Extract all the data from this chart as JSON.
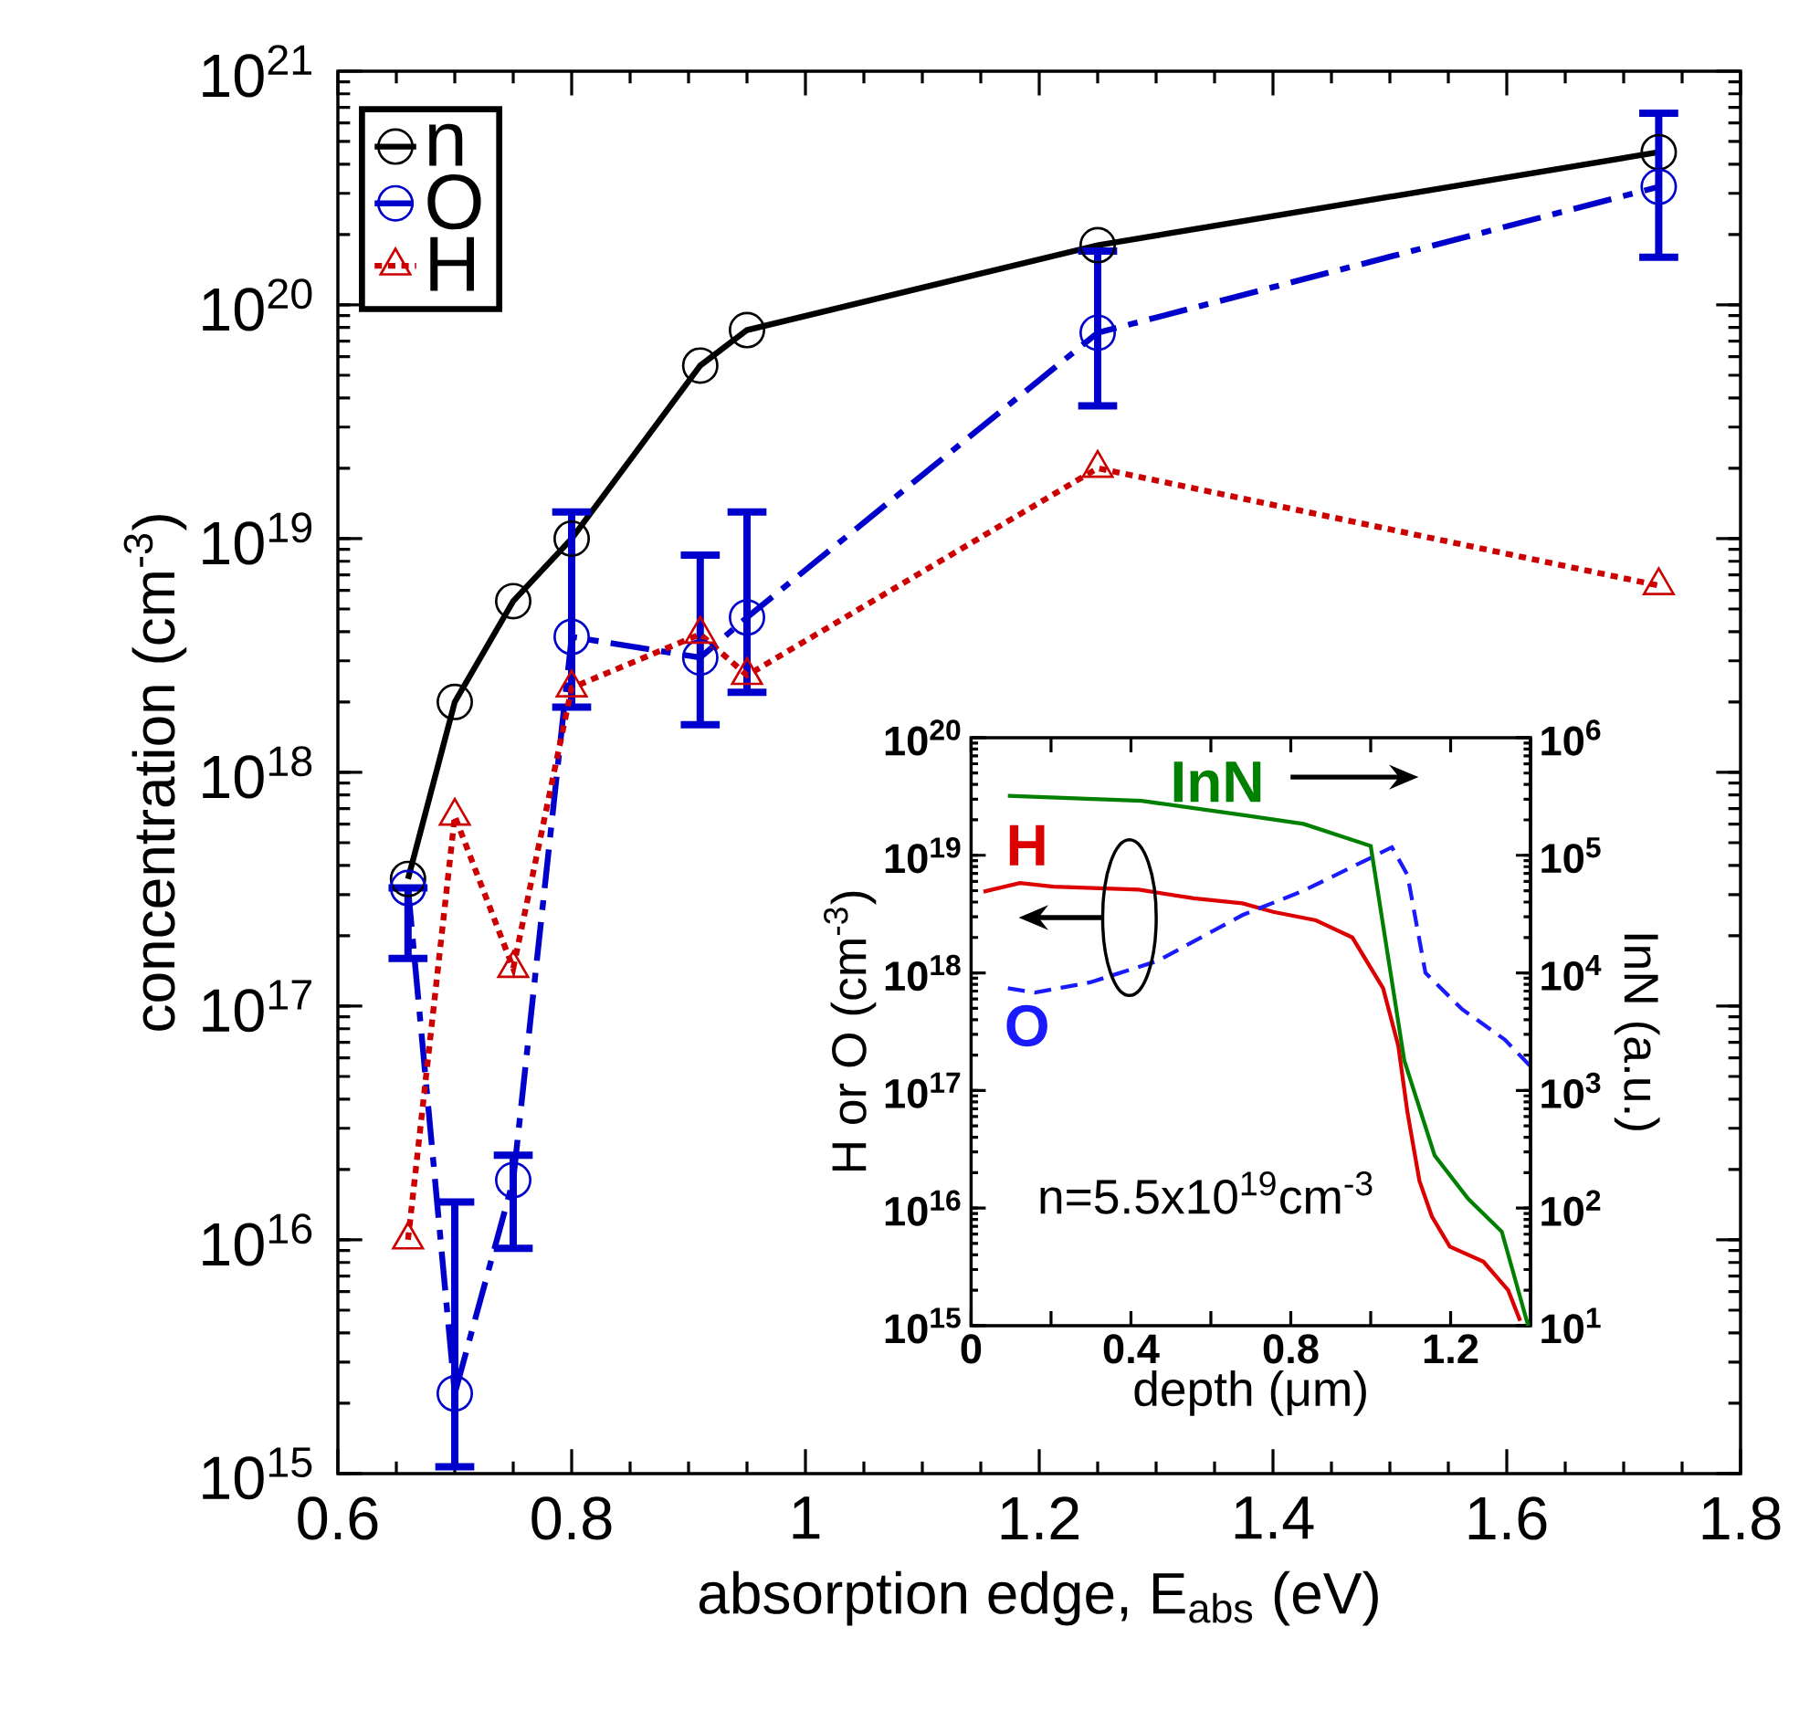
{
  "chart_data": [
    {
      "type": "line",
      "xlabel": "absorption edge, E$_{abs}$ (eV)",
      "ylabel": "concentration (cm$^{-3}$)",
      "log": "y",
      "legend": "top left",
      "xlim": [
        0.6,
        1.8
      ],
      "xticks": [
        0.6,
        0.8,
        1,
        1.2,
        1.4,
        1.6,
        1.8
      ],
      "ylim": [
        1000000000000000.0,
        1e+21
      ],
      "yticks": [
        {
          "value": 1000000000000000.0,
          "label": "10$^{15}$"
        },
        {
          "value": 1e+16,
          "label": "10$^{16}$"
        },
        {
          "value": 1e+17,
          "label": "10$^{17}$"
        },
        {
          "value": 1e+18,
          "label": "10$^{18}$"
        },
        {
          "value": 1e+19,
          "label": "10$^{19}$"
        },
        {
          "value": 1e+20,
          "label": "10$^{20}$"
        },
        {
          "value": 1e+21,
          "label": "10$^{21}$"
        }
      ],
      "series": [
        {
          "name": "n",
          "color": "#000000",
          "marker": "circle",
          "line_style": "solid",
          "x": [
            0.66,
            0.7,
            0.75,
            0.8,
            0.91,
            0.95,
            1.25,
            1.73
          ],
          "values": [
            3.5e+17,
            2e+18,
            5.4e+18,
            1e+19,
            5.5e+19,
            7.8e+19,
            1.8e+20,
            4.5e+20
          ]
        },
        {
          "name": "O",
          "color": "#0000cc",
          "marker": "circle",
          "line_style": "dashed",
          "x": [
            0.66,
            0.7,
            0.75,
            0.8,
            0.91,
            0.95,
            1.25,
            1.73
          ],
          "values": [
            3.2e+17,
            2200000000000000.0,
            1.8e+16,
            3.8e+18,
            3.1e+18,
            4.6e+18,
            7.6e+19,
            3.2e+20
          ],
          "errors": [
            [
              1.6e+17,
              3.2e+17
            ],
            [
              1070000000000000.0,
              1.45e+16
            ],
            [
              9200000000000000.0,
              2.3e+16
            ],
            [
              1.9e+18,
              1.3e+19
            ],
            [
              1.6e+18,
              8.5e+18
            ],
            [
              2.2e+18,
              1.3e+19
            ],
            [
              3.7e+19,
              1.7e+20
            ],
            [
              1.6e+20,
              6.6e+20
            ]
          ]
        },
        {
          "name": "H",
          "color": "#cc0000",
          "marker": "triangle",
          "line_style": "dotted",
          "x": [
            0.66,
            0.7,
            0.75,
            0.8,
            0.91,
            0.95,
            1.25,
            1.73
          ],
          "values": [
            1e+16,
            6.5e+17,
            1.45e+17,
            2.3e+18,
            3.9e+18,
            2.6e+18,
            2e+19,
            6.3e+18
          ]
        }
      ]
    },
    {
      "type": "line",
      "xlabel": "depth (μm)",
      "ylabel": "H or O (cm$^{-3}$)",
      "log": "y",
      "legend": false,
      "xlim": [
        0,
        1.4
      ],
      "xticks": [
        0,
        {
          "value": 0.2,
          "label": null
        },
        0.4,
        {
          "value": 0.6,
          "label": null
        },
        0.8,
        {
          "value": 1.0,
          "label": null
        },
        1.2
      ],
      "ylim": [
        1000000000000000.0,
        1e+20
      ],
      "yticks": [
        {
          "value": 1000000000000000.0,
          "label": "10$^{15}$"
        },
        {
          "value": 1e+16,
          "label": "10$^{16}$"
        },
        {
          "value": 1e+17,
          "label": "10$^{17}$"
        },
        {
          "value": 1e+18,
          "label": "10$^{18}$"
        },
        {
          "value": 1e+19,
          "label": "10$^{19}$"
        },
        {
          "value": 1e+20,
          "label": "10$^{20}$"
        }
      ],
      "annotations": [
        "n=5.5x10$^{19}$cm$^{-3}$"
      ],
      "series": [
        {
          "name": "H",
          "color": "#dd0000",
          "line_style": "solid",
          "x": [
            0.031,
            0.122,
            0.206,
            0.42,
            0.557,
            0.679,
            0.756,
            0.863,
            0.954,
            1.031,
            1.069,
            1.092,
            1.122,
            1.153,
            1.198,
            1.282,
            1.344,
            1.374
          ],
          "values": [
            4.9e+18,
            5.8e+18,
            5.4e+18,
            5.1e+18,
            4.3e+18,
            3.9e+18,
            3.3e+18,
            2.8e+18,
            2e+18,
            7.4e+17,
            2.4e+17,
            6.5e+16,
            1.7e+16,
            8500000000000000.0,
            4700000000000000.0,
            3500000000000000.0,
            2000000000000000.0,
            1100000000000000.0
          ]
        },
        {
          "name": "O",
          "color": "#1a1aff",
          "line_style": "dashed",
          "x": [
            0.092,
            0.16,
            0.298,
            0.466,
            0.679,
            0.832,
            1.0,
            1.053,
            1.092,
            1.137,
            1.229,
            1.336,
            1.4
          ],
          "values": [
            7.4e+17,
            6.8e+17,
            8.3e+17,
            1.26e+18,
            3.1e+18,
            5e+18,
            9.5e+18,
            1.17e+19,
            6.8e+18,
            1e+18,
            4.9e+17,
            2.7e+17,
            1.6e+17
          ]
        }
      ]
    },
    {
      "type": "line",
      "ylabel": "InN (a.u.)",
      "log": "y",
      "legend": false,
      "tick_labels": "y",
      "xlim": [
        0,
        1.4
      ],
      "ylim": [
        10,
        1000000.0
      ],
      "yticks": [
        {
          "value": 10,
          "label": "10$^{1}$"
        },
        {
          "value": 100,
          "label": "10$^{2}$"
        },
        {
          "value": 1000,
          "label": "10$^{3}$"
        },
        {
          "value": 10000,
          "label": "10$^{4}$"
        },
        {
          "value": 100000,
          "label": "10$^{5}$"
        },
        {
          "value": 1000000,
          "label": "10$^{6}$"
        }
      ],
      "series": [
        {
          "name": "InN",
          "color": "#008000",
          "line_style": "solid",
          "x": [
            0.092,
            0.427,
            0.679,
            0.832,
            1.0,
            1.084,
            1.16,
            1.244,
            1.328,
            1.394
          ],
          "values": [
            320000.0,
            290000.0,
            220000.0,
            185000.0,
            120000.0,
            1800.0,
            280,
            120,
            63,
            10
          ]
        }
      ]
    }
  ]
}
